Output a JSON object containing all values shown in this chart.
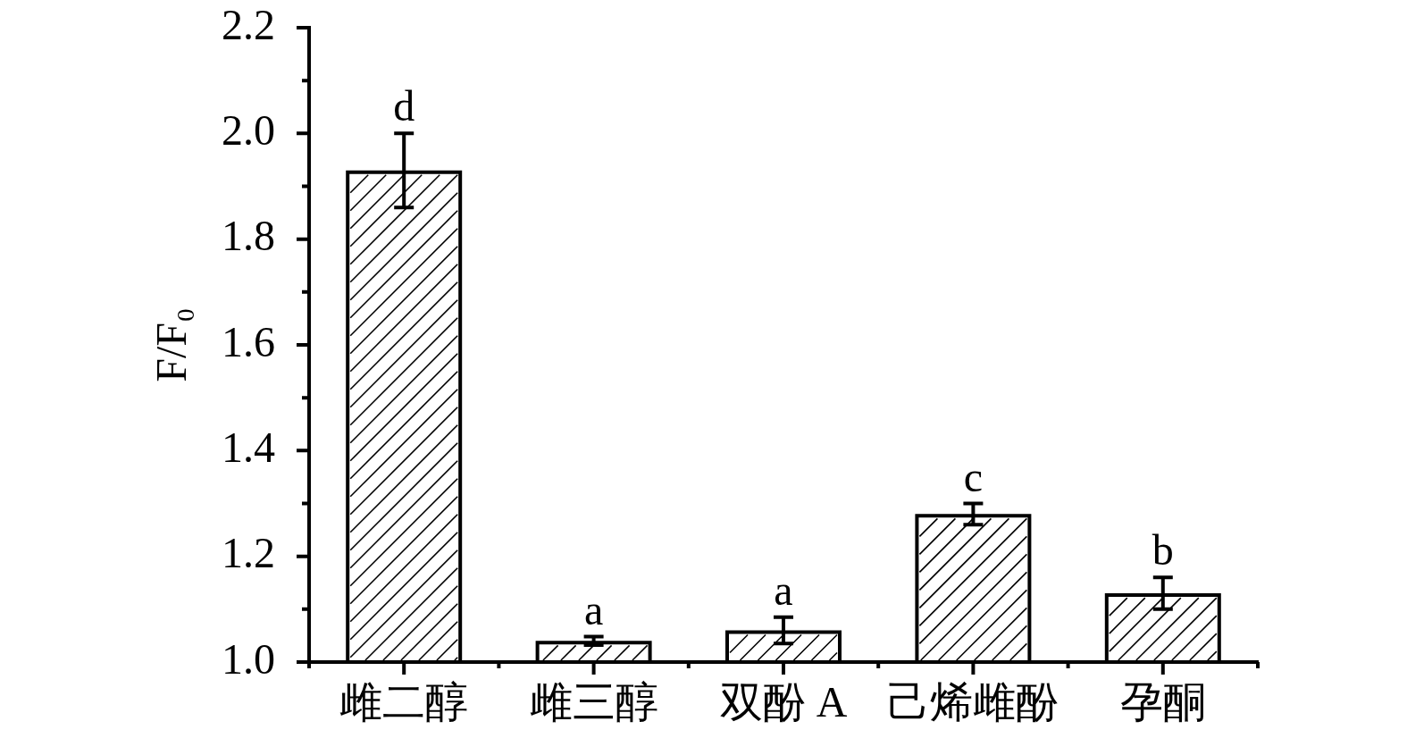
{
  "chart_data": {
    "type": "bar",
    "ylabel": "F/F₀",
    "categories": [
      "雌二醇",
      "雌三醇",
      "双酚 A",
      "己烯雌酚",
      "孕酮"
    ],
    "values": [
      1.93,
      1.04,
      1.06,
      1.28,
      1.13
    ],
    "errors": [
      0.07,
      0.008,
      0.025,
      0.02,
      0.03
    ],
    "color": "#000000",
    "ylim": [
      1,
      2.2
    ],
    "yticks": [
      {
        "value": 1,
        "label": "1.0"
      },
      {
        "value": 1.1,
        "label": null
      },
      1.2,
      {
        "value": 1.3,
        "label": null
      },
      1.4,
      {
        "value": 1.5,
        "label": null
      },
      1.6,
      {
        "value": 1.7,
        "label": null
      },
      1.8,
      {
        "value": 1.9,
        "label": null
      },
      {
        "value": 2,
        "label": "2.0"
      },
      {
        "value": 2.1,
        "label": null
      },
      2.2
    ],
    "annotations": [
      {
        "text": "d",
        "x": "雌二醇",
        "y": 1.93
      },
      {
        "text": "a",
        "x": "雌三醇",
        "y": 1.04
      },
      {
        "text": "a",
        "x": "双酚 A",
        "y": 1.06
      },
      {
        "text": "c",
        "x": "己烯雌酚",
        "y": 1.28
      },
      {
        "text": "b",
        "x": "孕酮",
        "y": 1.13
      }
    ]
  }
}
